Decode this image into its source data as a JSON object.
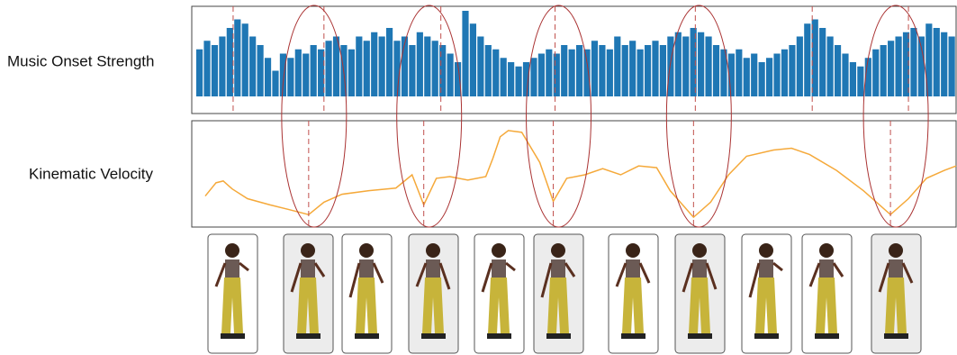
{
  "chart_data": [
    {
      "type": "bar",
      "title": "Music Onset Strength",
      "color": "#1f77b4",
      "marker_color": "#c0504d",
      "ylim": [
        0,
        1
      ],
      "xlim": [
        0,
        850
      ],
      "values": [
        0.55,
        0.65,
        0.6,
        0.7,
        0.8,
        0.9,
        0.85,
        0.7,
        0.6,
        0.45,
        0.3,
        0.5,
        0.45,
        0.55,
        0.5,
        0.6,
        0.55,
        0.65,
        0.7,
        0.6,
        0.55,
        0.7,
        0.65,
        0.75,
        0.7,
        0.8,
        0.65,
        0.7,
        0.6,
        0.75,
        0.7,
        0.65,
        0.6,
        0.5,
        0.4,
        1.0,
        0.85,
        0.7,
        0.6,
        0.55,
        0.45,
        0.4,
        0.35,
        0.4,
        0.45,
        0.5,
        0.55,
        0.5,
        0.6,
        0.55,
        0.6,
        0.55,
        0.65,
        0.6,
        0.55,
        0.7,
        0.6,
        0.65,
        0.55,
        0.6,
        0.65,
        0.6,
        0.7,
        0.75,
        0.7,
        0.8,
        0.75,
        0.7,
        0.6,
        0.55,
        0.5,
        0.55,
        0.45,
        0.5,
        0.4,
        0.45,
        0.5,
        0.55,
        0.6,
        0.7,
        0.85,
        0.9,
        0.8,
        0.7,
        0.6,
        0.5,
        0.4,
        0.35,
        0.45,
        0.55,
        0.6,
        0.65,
        0.7,
        0.75,
        0.8,
        0.7,
        0.85,
        0.8,
        0.75,
        0.7
      ],
      "markers": [
        46,
        147,
        277,
        404,
        560,
        690,
        797
      ]
    },
    {
      "type": "line",
      "title": "Kinematic Velocity",
      "color": "#f5a93a",
      "marker_color": "#c0504d",
      "ylim": [
        -0.1,
        1
      ],
      "xlim": [
        0,
        850
      ],
      "x": [
        15,
        27,
        35,
        45,
        62,
        87,
        107,
        130,
        147,
        167,
        197,
        227,
        245,
        258,
        272,
        287,
        307,
        327,
        335,
        343,
        352,
        367,
        387,
        402,
        417,
        437,
        457,
        477,
        497,
        517,
        532,
        558,
        577,
        597,
        617,
        647,
        667,
        687,
        717,
        747,
        777,
        797,
        817,
        837,
        850
      ],
      "values": [
        0.21,
        0.36,
        0.38,
        0.29,
        0.18,
        0.11,
        0.06,
        0,
        0.14,
        0.23,
        0.27,
        0.3,
        0.45,
        0.11,
        0.41,
        0.43,
        0.39,
        0.43,
        0.64,
        0.88,
        0.95,
        0.93,
        0.59,
        0.15,
        0.41,
        0.45,
        0.52,
        0.45,
        0.55,
        0.53,
        0.27,
        -0.03,
        0.14,
        0.45,
        0.66,
        0.73,
        0.75,
        0.68,
        0.5,
        0.27,
        0,
        0.18,
        0.41,
        0.5,
        0.55
      ],
      "markers": [
        130,
        258,
        402,
        558,
        777
      ]
    }
  ]
}
